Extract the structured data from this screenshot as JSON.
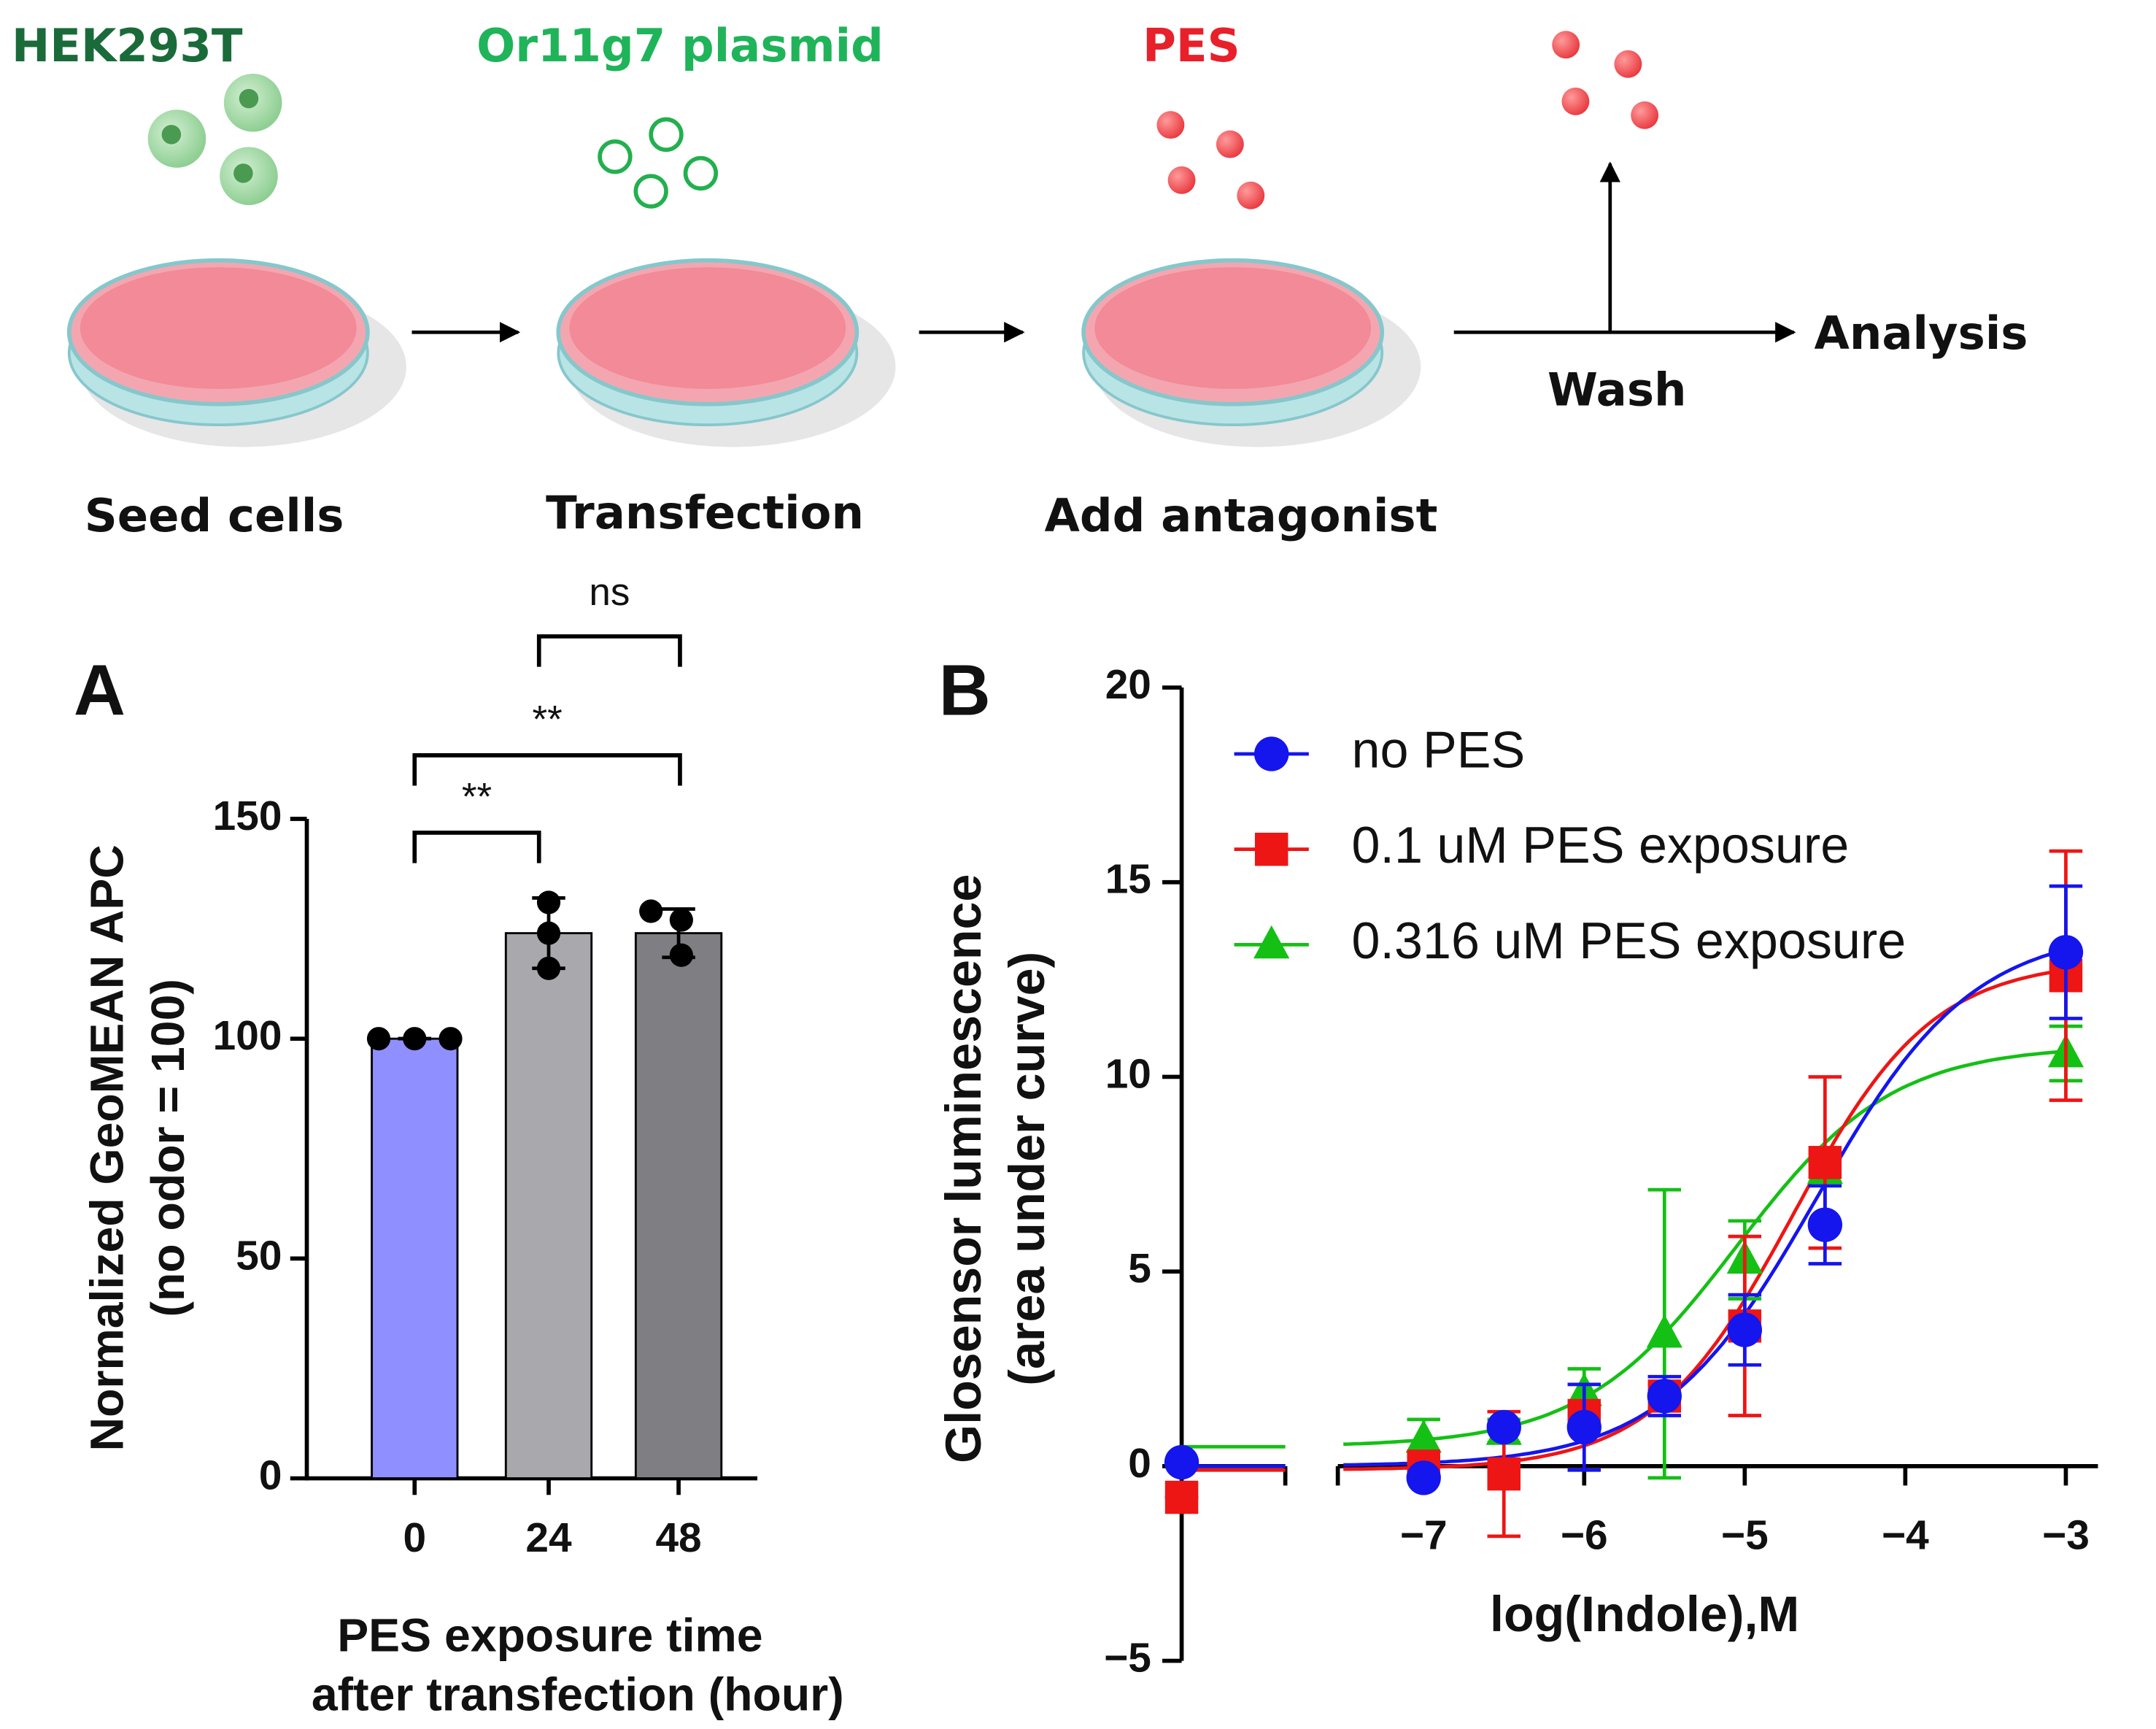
{
  "diagram": {
    "steps": [
      {
        "reagent": "HEK293T",
        "label": "Seed cells"
      },
      {
        "reagent": "Or11g7 plasmid",
        "label": "Transfection"
      },
      {
        "reagent": "PES",
        "label": "Add antagonist"
      }
    ],
    "wash": "Wash",
    "analysis": "Analysis"
  },
  "chart_data": [
    {
      "type": "bar",
      "panel": "A",
      "categories": [
        "0",
        "24",
        "48"
      ],
      "values": [
        100,
        124,
        124
      ],
      "errors": [
        0,
        8,
        5.5
      ],
      "points": [
        [
          100,
          100,
          100
        ],
        [
          131,
          124,
          116
        ],
        [
          129,
          127,
          119
        ]
      ],
      "colors": [
        "#8f8fff",
        "#a8a8ad",
        "#7f7f83"
      ],
      "ylim": [
        0,
        150
      ],
      "yticks": [
        0,
        50,
        100,
        150
      ],
      "y_label": [
        "Normalized GeoMEAN APC",
        "(no odor = 100)"
      ],
      "x_label": [
        "PES exposure time",
        "after transfection (hour)"
      ],
      "annotations": [
        "ns",
        "**",
        "**"
      ]
    },
    {
      "type": "dose-response",
      "panel": "B",
      "x": [
        -7,
        -6.5,
        -6,
        -5.5,
        -5,
        -4.5,
        -3
      ],
      "series": [
        {
          "name": "no PES",
          "color": "#1515ee",
          "marker": "circle",
          "control": 0.1,
          "control_error": 0,
          "values": [
            -0.3,
            1.0,
            1.0,
            1.8,
            3.5,
            6.2,
            13.2
          ],
          "errors": [
            0,
            0,
            1.1,
            0.5,
            0.9,
            1.0,
            1.7
          ],
          "fit": {
            "bottom": 0,
            "top": 13.8,
            "logec50": -4.55,
            "hill": 0.9
          }
        },
        {
          "name": "0.1 uM PES exposure",
          "color": "#ee1515",
          "marker": "square",
          "control": -0.8,
          "control_error": 0,
          "values": [
            0.0,
            -0.2,
            1.3,
            1.8,
            3.6,
            7.8,
            12.6
          ],
          "errors": [
            0,
            1.6,
            0.2,
            0.3,
            2.3,
            2.2,
            3.2
          ],
          "fit": {
            "bottom": -0.1,
            "top": 13.0,
            "logec50": -4.7,
            "hill": 1.0
          }
        },
        {
          "name": "0.316 uM PES exposure",
          "color": "#14c014",
          "marker": "triangle",
          "control": null,
          "control_error": null,
          "values": [
            0.7,
            0.9,
            1.9,
            3.4,
            5.3,
            7.6,
            10.6
          ],
          "errors": [
            0.5,
            0.3,
            0.6,
            3.7,
            1.0,
            0.3,
            0.7
          ],
          "fit": {
            "bottom": 0.5,
            "top": 10.8,
            "logec50": -5.05,
            "hill": 0.9
          }
        }
      ],
      "xlim": [
        -7.5,
        -2.8
      ],
      "xticks": [
        {
          "value": -7,
          "label": "−7"
        },
        {
          "value": -6,
          "label": "−6"
        },
        {
          "value": -5,
          "label": "−5"
        },
        {
          "value": -4,
          "label": "−4"
        },
        {
          "value": -3,
          "label": "−3"
        }
      ],
      "ylim": [
        -5,
        20
      ],
      "yticks": [
        {
          "value": -5,
          "label": "−5"
        },
        0,
        5,
        10,
        15,
        20
      ],
      "x_label": "log(Indole),M",
      "y_label": [
        "Glosensor luminescence",
        "(area under curve)"
      ],
      "legend": "upper left"
    }
  ]
}
